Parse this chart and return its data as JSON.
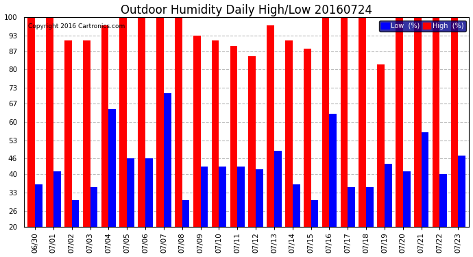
{
  "title": "Outdoor Humidity Daily High/Low 20160724",
  "copyright": "Copyright 2016 Cartronics.com",
  "dates": [
    "06/30",
    "07/01",
    "07/02",
    "07/03",
    "07/04",
    "07/05",
    "07/06",
    "07/07",
    "07/08",
    "07/09",
    "07/10",
    "07/11",
    "07/12",
    "07/13",
    "07/14",
    "07/15",
    "07/16",
    "07/17",
    "07/18",
    "07/19",
    "07/20",
    "07/21",
    "07/22",
    "07/23"
  ],
  "high": [
    100,
    100,
    91,
    91,
    97,
    100,
    100,
    100,
    100,
    93,
    91,
    89,
    85,
    97,
    91,
    88,
    100,
    100,
    100,
    82,
    100,
    100,
    100,
    100
  ],
  "low": [
    36,
    41,
    30,
    35,
    65,
    46,
    46,
    71,
    30,
    43,
    43,
    43,
    42,
    49,
    36,
    30,
    63,
    35,
    35,
    44,
    41,
    56,
    40,
    47
  ],
  "bar_color_high": "#FF0000",
  "bar_color_low": "#0000FF",
  "bg_color": "#FFFFFF",
  "ymin": 20,
  "ymax": 100,
  "yticks": [
    20,
    26,
    33,
    40,
    46,
    53,
    60,
    67,
    73,
    80,
    87,
    93,
    100
  ],
  "grid_color": "#BBBBBB",
  "title_fontsize": 12,
  "tick_fontsize": 7.5,
  "legend_low_label": "Low  (%)",
  "legend_high_label": "High  (%)"
}
